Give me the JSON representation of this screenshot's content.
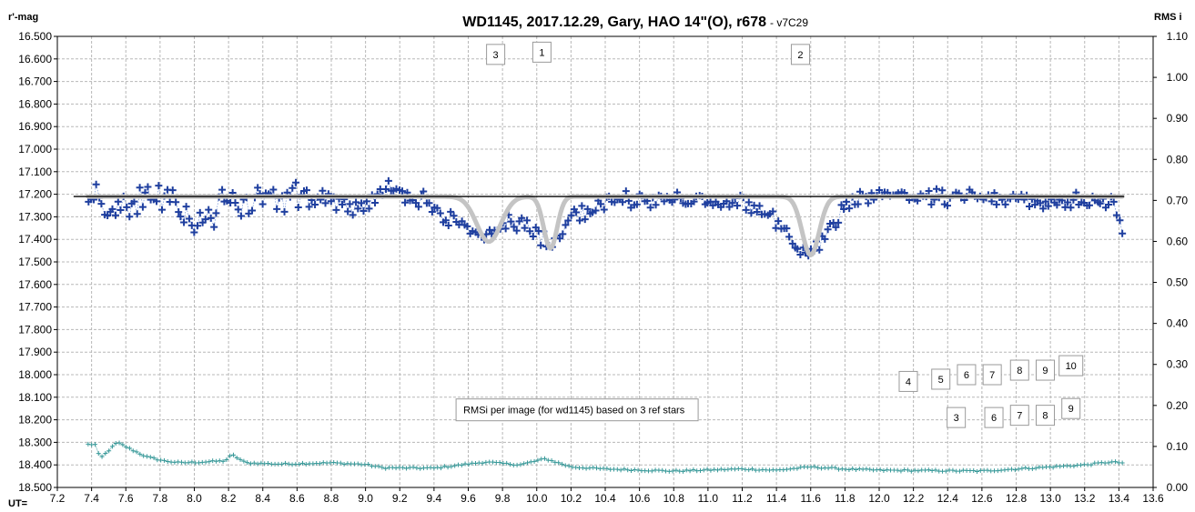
{
  "chart_data": {
    "type": "scatter",
    "title": "WD1145, 2017.12.29,  Gary, HAO 14\"(O), r678",
    "subtitle": "- v7C29",
    "ylabel_left": "r'-mag",
    "ylabel_right": "RMS i",
    "xlabel": "UT=",
    "xlim": [
      7.2,
      13.6
    ],
    "ylim_left": [
      16.5,
      18.5
    ],
    "ylim_right": [
      0.0,
      1.1
    ],
    "left_axis_inverted": true,
    "x_ticks": [
      "7.2",
      "7.4",
      "7.6",
      "7.8",
      "8.0",
      "8.2",
      "8.4",
      "8.6",
      "8.8",
      "9.0",
      "9.2",
      "9.4",
      "9.6",
      "9.8",
      "10.0",
      "10.2",
      "10.4",
      "10.6",
      "10.8",
      "11.0",
      "11.2",
      "11.4",
      "11.6",
      "11.8",
      "12.0",
      "12.2",
      "12.4",
      "12.6",
      "12.8",
      "13.0",
      "13.2",
      "13.4",
      "13.6"
    ],
    "y_left_ticks": [
      "16.500",
      "16.600",
      "16.700",
      "16.800",
      "16.900",
      "17.000",
      "17.100",
      "17.200",
      "17.300",
      "17.400",
      "17.500",
      "17.600",
      "17.700",
      "17.800",
      "17.900",
      "18.000",
      "18.100",
      "18.200",
      "18.300",
      "18.400",
      "18.500"
    ],
    "y_right_ticks": [
      "1.10",
      "1.00",
      "0.90",
      "0.80",
      "0.70",
      "0.60",
      "0.50",
      "0.40",
      "0.30",
      "0.20",
      "0.10",
      "0.00"
    ],
    "grid": true,
    "baseline_mag": 17.21,
    "baseline_range": [
      7.38,
      13.42
    ],
    "mag_dips": [
      {
        "center": 9.72,
        "depth": 0.2,
        "width": 0.1
      },
      {
        "center": 10.08,
        "depth": 0.23,
        "width": 0.055
      },
      {
        "center": 11.6,
        "depth": 0.26,
        "width": 0.07
      }
    ],
    "mag_series": {
      "color": "#1f3f9f",
      "anchors": [
        [
          7.4,
          17.22
        ],
        [
          7.55,
          17.26
        ],
        [
          7.8,
          17.22
        ],
        [
          8.0,
          17.33
        ],
        [
          8.1,
          17.27
        ],
        [
          8.2,
          17.22
        ],
        [
          8.35,
          17.25
        ],
        [
          8.6,
          17.2
        ],
        [
          8.8,
          17.23
        ],
        [
          9.0,
          17.24
        ],
        [
          9.1,
          17.17
        ],
        [
          9.4,
          17.25
        ],
        [
          9.55,
          17.34
        ],
        [
          9.7,
          17.4
        ],
        [
          9.85,
          17.32
        ],
        [
          10.0,
          17.38
        ],
        [
          10.08,
          17.43
        ],
        [
          10.2,
          17.3
        ],
        [
          10.4,
          17.24
        ],
        [
          10.6,
          17.22
        ],
        [
          11.0,
          17.23
        ],
        [
          11.2,
          17.24
        ],
        [
          11.4,
          17.32
        ],
        [
          11.55,
          17.46
        ],
        [
          11.65,
          17.42
        ],
        [
          11.8,
          17.25
        ],
        [
          12.0,
          17.2
        ],
        [
          12.4,
          17.22
        ],
        [
          12.7,
          17.21
        ],
        [
          13.0,
          17.24
        ],
        [
          13.3,
          17.22
        ],
        [
          13.38,
          17.25
        ],
        [
          13.42,
          17.36
        ]
      ],
      "count": 380,
      "scatter": 0.028
    },
    "rms_series": {
      "color": "#3a9a9a",
      "anchors": [
        [
          7.38,
          0.105
        ],
        [
          7.42,
          0.105
        ],
        [
          7.45,
          0.07
        ],
        [
          7.5,
          0.09
        ],
        [
          7.55,
          0.11
        ],
        [
          7.62,
          0.095
        ],
        [
          7.72,
          0.075
        ],
        [
          7.82,
          0.065
        ],
        [
          7.92,
          0.06
        ],
        [
          8.05,
          0.062
        ],
        [
          8.18,
          0.065
        ],
        [
          8.22,
          0.08
        ],
        [
          8.3,
          0.06
        ],
        [
          8.5,
          0.057
        ],
        [
          8.8,
          0.06
        ],
        [
          9.0,
          0.056
        ],
        [
          9.1,
          0.048
        ],
        [
          9.4,
          0.047
        ],
        [
          9.7,
          0.062
        ],
        [
          9.9,
          0.055
        ],
        [
          10.05,
          0.07
        ],
        [
          10.2,
          0.05
        ],
        [
          10.4,
          0.045
        ],
        [
          10.8,
          0.04
        ],
        [
          11.2,
          0.045
        ],
        [
          11.4,
          0.042
        ],
        [
          11.6,
          0.05
        ],
        [
          11.8,
          0.045
        ],
        [
          12.0,
          0.042
        ],
        [
          12.6,
          0.04
        ],
        [
          12.8,
          0.045
        ],
        [
          13.0,
          0.05
        ],
        [
          13.2,
          0.055
        ],
        [
          13.35,
          0.062
        ],
        [
          13.42,
          0.06
        ]
      ],
      "count": 300
    },
    "dip_labels": [
      {
        "label": "3",
        "x": 9.76,
        "mag": 16.58
      },
      {
        "label": "1",
        "x": 10.03,
        "mag": 16.57
      },
      {
        "label": "2",
        "x": 11.54,
        "mag": 16.58
      }
    ],
    "rms_labels": [
      {
        "label": "4",
        "x": 12.17,
        "mag": 18.03
      },
      {
        "label": "5",
        "x": 12.36,
        "mag": 18.02
      },
      {
        "label": "6",
        "x": 12.51,
        "mag": 18.0
      },
      {
        "label": "7",
        "x": 12.66,
        "mag": 18.0
      },
      {
        "label": "8",
        "x": 12.82,
        "mag": 17.98
      },
      {
        "label": "9",
        "x": 12.97,
        "mag": 17.98
      },
      {
        "label": "10",
        "x": 13.12,
        "mag": 17.96
      },
      {
        "label": "3",
        "x": 12.45,
        "mag": 18.19
      },
      {
        "label": "6",
        "x": 12.67,
        "mag": 18.19
      },
      {
        "label": "7",
        "x": 12.82,
        "mag": 18.18
      },
      {
        "label": "8",
        "x": 12.97,
        "mag": 18.18
      },
      {
        "label": "9",
        "x": 13.12,
        "mag": 18.15
      }
    ],
    "annotations": [
      {
        "text": "RMSi per image (for wd1145) based on 3 ref stars",
        "x": 9.55,
        "mag": 18.16
      }
    ]
  }
}
